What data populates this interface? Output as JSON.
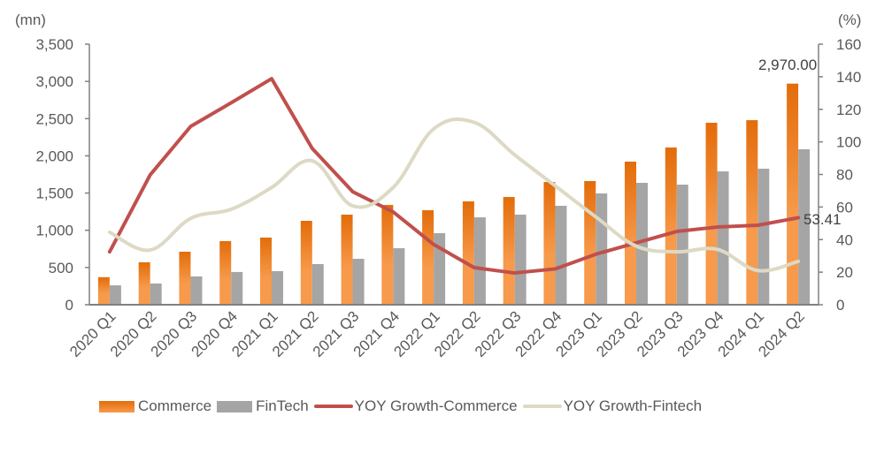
{
  "chart_data": {
    "type": "bar",
    "title": "",
    "left_axis_unit": "(mn)",
    "right_axis_unit": "(%)",
    "categories": [
      "2020 Q1",
      "2020 Q2",
      "2020 Q3",
      "2020 Q4",
      "2021 Q1",
      "2021 Q2",
      "2021 Q3",
      "2021 Q4",
      "2022 Q1",
      "2022 Q2",
      "2022 Q3",
      "2022 Q4",
      "2023 Q1",
      "2023 Q2",
      "2023 Q3",
      "2023 Q4",
      "2024 Q1",
      "2024 Q2"
    ],
    "ylim": [
      0,
      3500
    ],
    "y_ticks": [
      "0",
      "500",
      "1,000",
      "1,500",
      "2,000",
      "2,500",
      "3,000",
      "3,500"
    ],
    "y2lim": [
      0,
      160
    ],
    "y2_ticks": [
      "0",
      "20",
      "40",
      "60",
      "80",
      "100",
      "120",
      "140",
      "160"
    ],
    "grid": false,
    "legend_position": "bottom",
    "series": [
      {
        "name": "Commerce",
        "type": "bar",
        "axis": "left",
        "color": "#E36C0A",
        "color_light": "#F79A4B",
        "values": [
          370,
          570,
          712,
          854,
          902,
          1127,
          1210,
          1340,
          1269,
          1388,
          1447,
          1649,
          1661,
          1922,
          2112,
          2444,
          2479,
          2970
        ]
      },
      {
        "name": "FinTech",
        "type": "bar",
        "axis": "left",
        "color": "#A5A5A5",
        "values": [
          260,
          285,
          380,
          440,
          451,
          546,
          617,
          759,
          961,
          1174,
          1210,
          1329,
          1495,
          1637,
          1613,
          1791,
          1827,
          2088
        ]
      },
      {
        "name": "YOY Growth-Commerce",
        "type": "line",
        "axis": "right",
        "color": "#C0504D",
        "smooth": false,
        "values": [
          32.5,
          79.7,
          109.5,
          124,
          138.8,
          96,
          69.4,
          57,
          37,
          22.8,
          19.5,
          22,
          31,
          38,
          45,
          47.7,
          48.8,
          53.41
        ]
      },
      {
        "name": "YOY Growth-Fintech",
        "type": "line",
        "axis": "right",
        "color": "#DDD9C4",
        "smooth": true,
        "values": [
          44.5,
          33.6,
          53,
          58.6,
          72,
          88.4,
          60.7,
          72,
          108,
          112,
          92,
          73,
          54,
          36,
          32.5,
          34,
          21,
          26.6
        ]
      }
    ],
    "data_labels": [
      {
        "series": "Commerce",
        "category": "2024 Q2",
        "text": "2,970.00"
      },
      {
        "series": "YOY Growth-Commerce",
        "category": "2024 Q2",
        "text": "53.41"
      }
    ]
  }
}
